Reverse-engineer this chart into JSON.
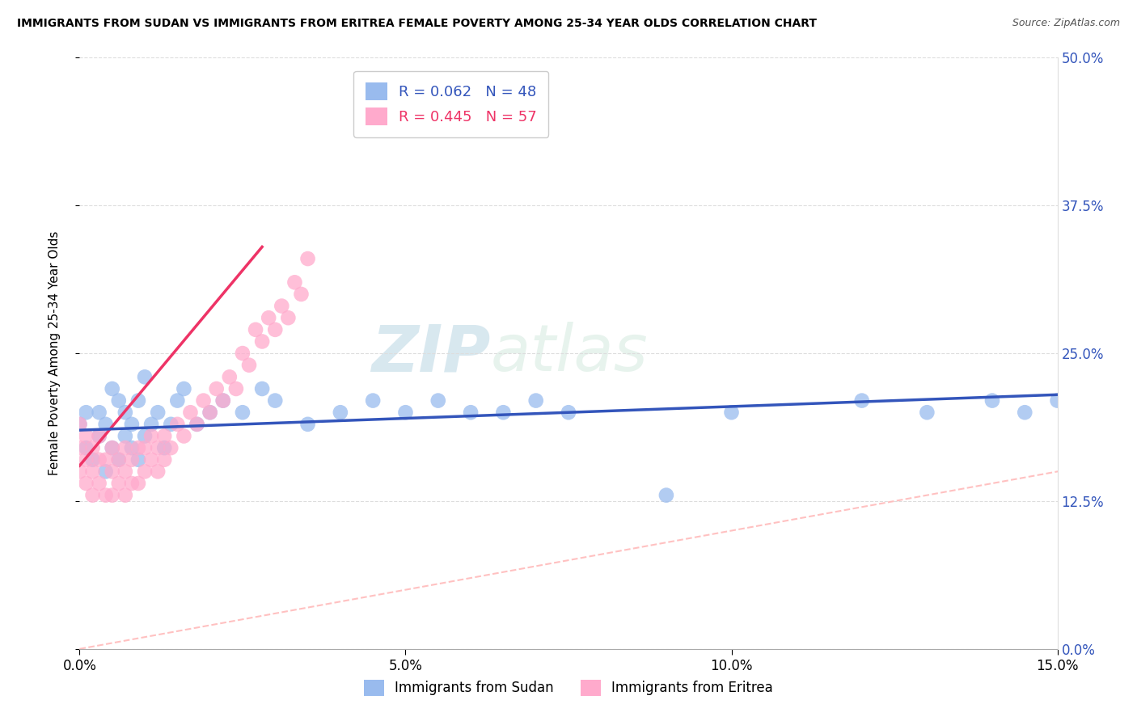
{
  "title": "IMMIGRANTS FROM SUDAN VS IMMIGRANTS FROM ERITREA FEMALE POVERTY AMONG 25-34 YEAR OLDS CORRELATION CHART",
  "source": "Source: ZipAtlas.com",
  "ylabel": "Female Poverty Among 25-34 Year Olds",
  "watermark_zip": "ZIP",
  "watermark_atlas": "atlas",
  "xlim": [
    0.0,
    0.15
  ],
  "ylim": [
    0.0,
    0.5
  ],
  "xticks": [
    0.0,
    0.05,
    0.1,
    0.15
  ],
  "xtick_labels": [
    "0.0%",
    "5.0%",
    "10.0%",
    "15.0%"
  ],
  "yticks": [
    0.0,
    0.125,
    0.25,
    0.375,
    0.5
  ],
  "ytick_labels": [
    "0.0%",
    "12.5%",
    "25.0%",
    "37.5%",
    "50.0%"
  ],
  "legend_sudan": "Immigrants from Sudan",
  "legend_eritrea": "Immigrants from Eritrea",
  "R_sudan": "R = 0.062",
  "N_sudan": "N = 48",
  "R_eritrea": "R = 0.445",
  "N_eritrea": "N = 57",
  "color_sudan": "#99BBEE",
  "color_eritrea": "#FFAACC",
  "color_sudan_line": "#3355BB",
  "color_eritrea_line": "#EE3366",
  "color_diag": "#FFBBBB",
  "sudan_x": [
    0.0,
    0.001,
    0.001,
    0.002,
    0.003,
    0.003,
    0.004,
    0.004,
    0.005,
    0.005,
    0.006,
    0.006,
    0.007,
    0.007,
    0.008,
    0.008,
    0.009,
    0.009,
    0.01,
    0.01,
    0.011,
    0.012,
    0.013,
    0.014,
    0.015,
    0.016,
    0.018,
    0.02,
    0.022,
    0.025,
    0.028,
    0.03,
    0.035,
    0.04,
    0.045,
    0.05,
    0.055,
    0.06,
    0.065,
    0.07,
    0.075,
    0.09,
    0.1,
    0.12,
    0.13,
    0.14,
    0.145,
    0.15
  ],
  "sudan_y": [
    0.19,
    0.17,
    0.2,
    0.16,
    0.18,
    0.2,
    0.15,
    0.19,
    0.17,
    0.22,
    0.16,
    0.21,
    0.18,
    0.2,
    0.17,
    0.19,
    0.16,
    0.21,
    0.18,
    0.23,
    0.19,
    0.2,
    0.17,
    0.19,
    0.21,
    0.22,
    0.19,
    0.2,
    0.21,
    0.2,
    0.22,
    0.21,
    0.19,
    0.2,
    0.21,
    0.2,
    0.21,
    0.2,
    0.2,
    0.21,
    0.2,
    0.13,
    0.2,
    0.21,
    0.2,
    0.21,
    0.2,
    0.21
  ],
  "eritrea_x": [
    0.0,
    0.0,
    0.0,
    0.001,
    0.001,
    0.001,
    0.002,
    0.002,
    0.002,
    0.003,
    0.003,
    0.003,
    0.004,
    0.004,
    0.005,
    0.005,
    0.005,
    0.006,
    0.006,
    0.007,
    0.007,
    0.007,
    0.008,
    0.008,
    0.009,
    0.009,
    0.01,
    0.01,
    0.011,
    0.011,
    0.012,
    0.012,
    0.013,
    0.013,
    0.014,
    0.015,
    0.016,
    0.017,
    0.018,
    0.019,
    0.02,
    0.021,
    0.022,
    0.023,
    0.024,
    0.025,
    0.026,
    0.027,
    0.028,
    0.029,
    0.03,
    0.031,
    0.032,
    0.033,
    0.034,
    0.035,
    0.047
  ],
  "eritrea_y": [
    0.15,
    0.17,
    0.19,
    0.14,
    0.16,
    0.18,
    0.13,
    0.15,
    0.17,
    0.14,
    0.16,
    0.18,
    0.13,
    0.16,
    0.13,
    0.15,
    0.17,
    0.14,
    0.16,
    0.13,
    0.15,
    0.17,
    0.14,
    0.16,
    0.14,
    0.17,
    0.15,
    0.17,
    0.16,
    0.18,
    0.15,
    0.17,
    0.16,
    0.18,
    0.17,
    0.19,
    0.18,
    0.2,
    0.19,
    0.21,
    0.2,
    0.22,
    0.21,
    0.23,
    0.22,
    0.25,
    0.24,
    0.27,
    0.26,
    0.28,
    0.27,
    0.29,
    0.28,
    0.31,
    0.3,
    0.33,
    0.47
  ],
  "eritrea_trend_x0": 0.0,
  "eritrea_trend_y0": 0.155,
  "eritrea_trend_x1": 0.028,
  "eritrea_trend_y1": 0.34,
  "sudan_trend_x0": 0.0,
  "sudan_trend_y0": 0.185,
  "sudan_trend_x1": 0.15,
  "sudan_trend_y1": 0.215
}
